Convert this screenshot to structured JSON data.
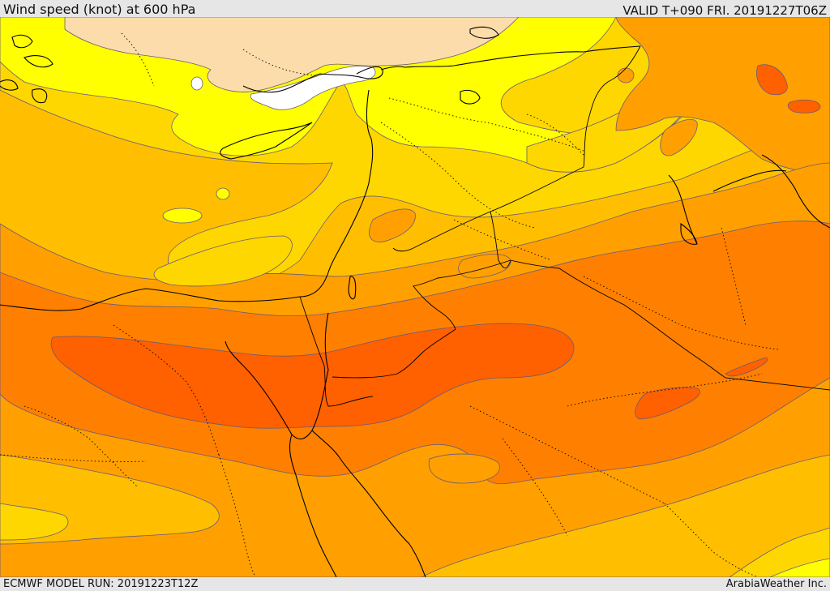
{
  "header": {
    "title": "Wind speed (knot) at 600 hPa",
    "valid": "VALID T+090 FRI. 20191227T06Z"
  },
  "footer": {
    "model_run": "ECMWF MODEL RUN: 20191223T12Z",
    "credit": "ArabiaWeather Inc."
  },
  "map": {
    "colors": {
      "calm": "#ffffff",
      "light": "#fcdcaa",
      "yellow": "#ffff00",
      "gold": "#ffd700",
      "amber": "#ffbf00",
      "orange": "#ffa000",
      "dark_orange": "#ff8000",
      "red_orange": "#ff6000",
      "contour": "#6a5a7a",
      "coast": "#000000"
    }
  }
}
